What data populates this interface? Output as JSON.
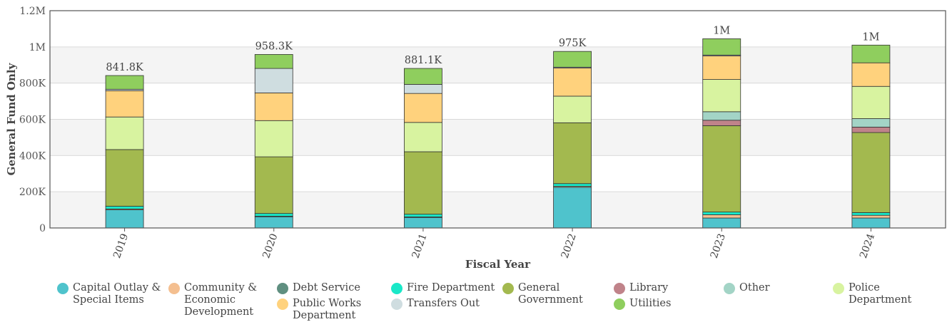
{
  "chart_data": {
    "type": "bar",
    "stacked": true,
    "xlabel": "Fiscal Year",
    "ylabel": "General Fund Only",
    "ylim": [
      0,
      1200000
    ],
    "yticks": [
      0,
      200000,
      400000,
      600000,
      800000,
      1000000,
      1200000
    ],
    "ytick_labels": [
      "0",
      "200K",
      "400K",
      "600K",
      "800K",
      "1M",
      "1.2M"
    ],
    "grid": true,
    "legend_position": "bottom",
    "categories": [
      "2019",
      "2020",
      "2021",
      "2022",
      "2023",
      "2024"
    ],
    "totals": [
      "841.8K",
      "958.3K",
      "881.1K",
      "975K",
      "1M",
      "1M"
    ],
    "series": [
      {
        "name": "Capital Outlay & Special Items",
        "color": "#4fc3cc",
        "values": [
          100000,
          62000,
          58000,
          225000,
          55000,
          55000
        ]
      },
      {
        "name": "Community & Economic Development",
        "color": "#f4bf90",
        "values": [
          5000,
          3000,
          3000,
          5000,
          18000,
          15000
        ]
      },
      {
        "name": "Debt Service",
        "color": "#5f8f80",
        "values": [
          0,
          0,
          0,
          0,
          0,
          0
        ]
      },
      {
        "name": "Fire Department",
        "color": "#19e8c8",
        "values": [
          15000,
          15000,
          15000,
          15000,
          15000,
          15000
        ]
      },
      {
        "name": "General Government",
        "color": "#a3b94f",
        "values": [
          313000,
          313000,
          345000,
          336000,
          477000,
          442000
        ]
      },
      {
        "name": "Library",
        "color": "#c0838a",
        "values": [
          0,
          0,
          0,
          0,
          30000,
          30000
        ]
      },
      {
        "name": "Other",
        "color": "#a3d4c6",
        "values": [
          0,
          0,
          0,
          0,
          47000,
          47000
        ]
      },
      {
        "name": "Police Department",
        "color": "#d8f3a0",
        "values": [
          180000,
          200000,
          162000,
          147000,
          178000,
          178000
        ]
      },
      {
        "name": "Public Works Department",
        "color": "#ffd27d",
        "values": [
          145000,
          153000,
          160000,
          155000,
          130000,
          130000
        ]
      },
      {
        "name": "Transfers Out",
        "color": "#cfdde0",
        "values": [
          8000,
          135000,
          50000,
          5000,
          5000,
          0
        ]
      },
      {
        "name": "Utilities",
        "color": "#8fce5e",
        "values": [
          75800,
          77300,
          88100,
          87000,
          90000,
          98000
        ]
      }
    ]
  },
  "legend": {
    "items": [
      {
        "label": "Capital Outlay & Special Items",
        "color": "#4fc3cc"
      },
      {
        "label": "Community & Economic Development",
        "color": "#f4bf90"
      },
      {
        "label": "Debt Service",
        "color": "#5f8f80"
      },
      {
        "label": "Fire Department",
        "color": "#19e8c8"
      },
      {
        "label": "General Government",
        "color": "#a3b94f"
      },
      {
        "label": "Library",
        "color": "#c0838a"
      },
      {
        "label": "Other",
        "color": "#a3d4c6"
      },
      {
        "label": "Police Department",
        "color": "#d8f3a0"
      },
      {
        "label": "Public Works Department",
        "color": "#ffd27d"
      },
      {
        "label": "Transfers Out",
        "color": "#cfdde0"
      },
      {
        "label": "Utilities",
        "color": "#8fce5e"
      }
    ]
  }
}
